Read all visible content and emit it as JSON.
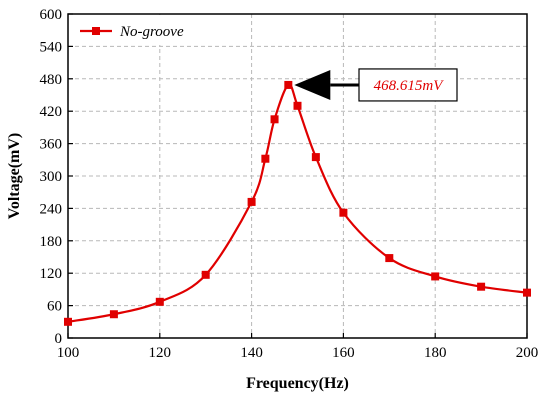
{
  "chart_data": {
    "type": "line",
    "xlabel": "Frequency(Hz)",
    "ylabel": "Voltage(mV)",
    "xlim": [
      100,
      200
    ],
    "ylim": [
      0,
      600
    ],
    "xticks": [
      100,
      120,
      140,
      160,
      180,
      200
    ],
    "yticks": [
      0,
      60,
      120,
      180,
      240,
      300,
      360,
      420,
      480,
      540,
      600
    ],
    "grid": true,
    "legend_position": "top-left",
    "series": [
      {
        "name": "No-groove",
        "color": "#e00000",
        "marker": "square",
        "x": [
          100,
          110,
          120,
          130,
          140,
          143,
          145,
          148,
          150,
          154,
          160,
          170,
          180,
          190,
          200
        ],
        "y": [
          30,
          44,
          67,
          117,
          252,
          332,
          405,
          468.615,
          430,
          335,
          232,
          148,
          114,
          95,
          84
        ]
      }
    ],
    "annotations": [
      {
        "text": "468.615mV",
        "x": 148,
        "y": 468.615,
        "style": "arrow-box"
      }
    ]
  }
}
